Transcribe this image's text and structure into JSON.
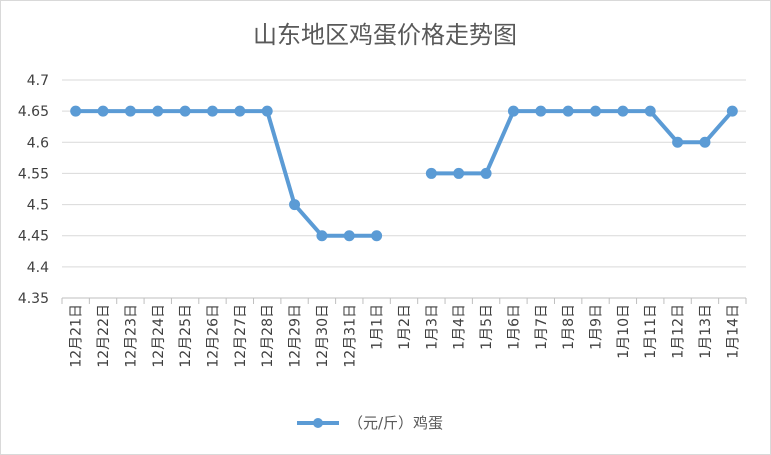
{
  "chart_data": {
    "type": "line",
    "title": "山东地区鸡蛋价格走势图",
    "xlabel": "",
    "ylabel": "",
    "categories": [
      "12月21日",
      "12月22日",
      "12月23日",
      "12月24日",
      "12月25日",
      "12月26日",
      "12月27日",
      "12月28日",
      "12月29日",
      "12月30日",
      "12月31日",
      "1月1日",
      "1月2日",
      "1月3日",
      "1月4日",
      "1月5日",
      "1月6日",
      "1月7日",
      "1月8日",
      "1月9日",
      "1月10日",
      "1月11日",
      "1月12日",
      "1月13日",
      "1月14日"
    ],
    "series": [
      {
        "name": "（元/斤）鸡蛋",
        "values": [
          4.65,
          4.65,
          4.65,
          4.65,
          4.65,
          4.65,
          4.65,
          4.65,
          4.5,
          4.45,
          4.45,
          4.45,
          null,
          4.55,
          4.55,
          4.55,
          4.65,
          4.65,
          4.65,
          4.65,
          4.65,
          4.65,
          4.6,
          4.6,
          4.65
        ]
      }
    ],
    "ylim": [
      4.35,
      4.7
    ],
    "yticks": [
      4.35,
      4.4,
      4.45,
      4.5,
      4.55,
      4.6,
      4.65,
      4.7
    ],
    "grid": true,
    "legend": "bottom",
    "colors": {
      "series": "#5b9bd5",
      "grid": "#d9d9d9",
      "axis": "#bfbfbf"
    }
  }
}
